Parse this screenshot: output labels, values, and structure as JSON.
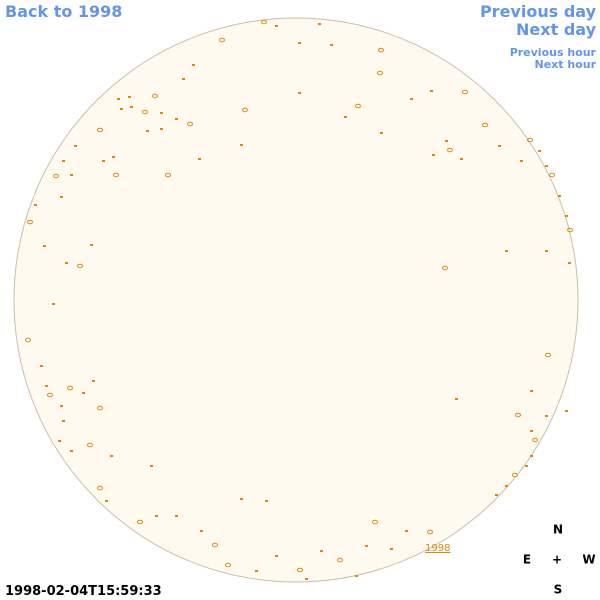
{
  "navigation": {
    "back": "Back to 1998",
    "previous_day": "Previous day",
    "next_day": "Next day",
    "previous_hour": "Previous hour",
    "next_hour": "Next hour"
  },
  "image": {
    "year_label": "1998",
    "timestamp": "1998-02-04T15:59:33"
  },
  "compass": {
    "north": "N",
    "east": "E",
    "center": "+",
    "west": "W",
    "south": "S"
  }
}
